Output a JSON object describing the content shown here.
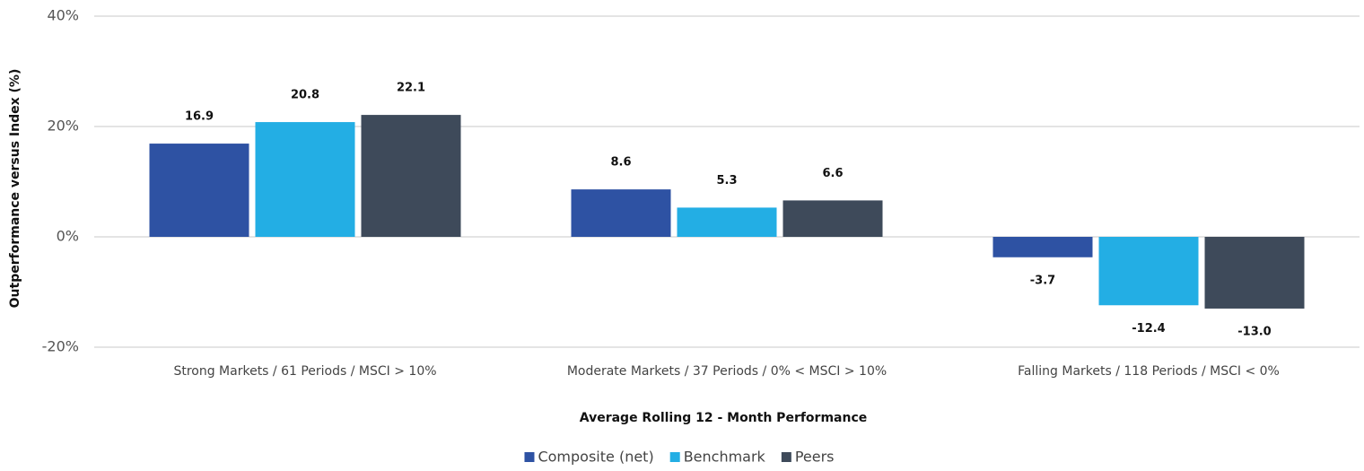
{
  "chart_data": {
    "type": "bar",
    "y_label": "Outperformance versus Index (%)",
    "x_label": "Average Rolling 12 - Month Performance",
    "categories": [
      "Strong Markets / 61 Periods / MSCI > 10%",
      "Moderate Markets / 37 Periods / 0% < MSCI > 10%",
      "Falling Markets / 118 Periods / MSCI < 0%"
    ],
    "series": [
      {
        "name": "Composite (net)",
        "color": "#2e52a3",
        "values": [
          16.9,
          8.6,
          -3.7
        ],
        "value_labels": [
          "16.9",
          "8.6",
          "-3.7"
        ]
      },
      {
        "name": "Benchmark",
        "color": "#23aee4",
        "values": [
          20.8,
          5.3,
          -12.4
        ],
        "value_labels": [
          "20.8",
          "5.3",
          "-12.4"
        ]
      },
      {
        "name": "Peers",
        "color": "#3e4a5a",
        "values": [
          22.1,
          6.6,
          -13.0
        ],
        "value_labels": [
          "22.1",
          "6.6",
          "-13.0"
        ]
      }
    ],
    "ylim": [
      -20,
      40
    ],
    "yticks": [
      {
        "value": -20,
        "label": "-20%"
      },
      {
        "value": 0,
        "label": "0%"
      },
      {
        "value": 20,
        "label": "20%"
      },
      {
        "value": 40,
        "label": "40%"
      }
    ],
    "grid": true,
    "legend": "bottom"
  }
}
